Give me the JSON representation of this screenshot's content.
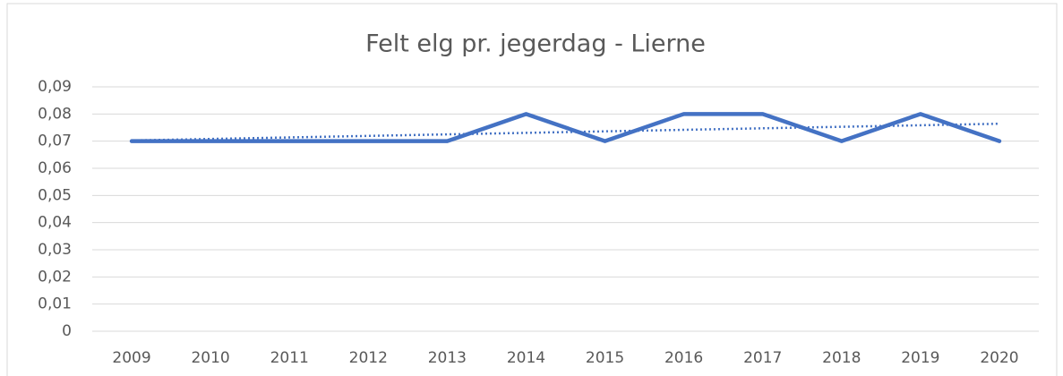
{
  "chart_data": {
    "type": "line",
    "title": "Felt elg pr. jegerdag - Lierne",
    "categories": [
      "2009",
      "2010",
      "2011",
      "2012",
      "2013",
      "2014",
      "2015",
      "2016",
      "2017",
      "2018",
      "2019",
      "2020"
    ],
    "series": [
      {
        "name": "Lierne",
        "color": "#4472c4",
        "values": [
          0.07,
          0.07,
          0.07,
          0.07,
          0.07,
          0.08,
          0.07,
          0.08,
          0.08,
          0.07,
          0.08,
          0.07
        ]
      }
    ],
    "ylim": [
      0,
      0.09
    ],
    "yticks": [
      0,
      {
        "value": 0.01,
        "label": "0,01"
      },
      {
        "value": 0.02,
        "label": "0,02"
      },
      {
        "value": 0.03,
        "label": "0,03"
      },
      {
        "value": 0.04,
        "label": "0,04"
      },
      {
        "value": 0.05,
        "label": "0,05"
      },
      {
        "value": 0.06,
        "label": "0,06"
      },
      {
        "value": 0.07,
        "label": "0,07"
      },
      {
        "value": 0.08,
        "label": "0,08"
      },
      {
        "value": 0.09,
        "label": "0,09"
      }
    ],
    "grid": true,
    "trendline": "linear"
  }
}
